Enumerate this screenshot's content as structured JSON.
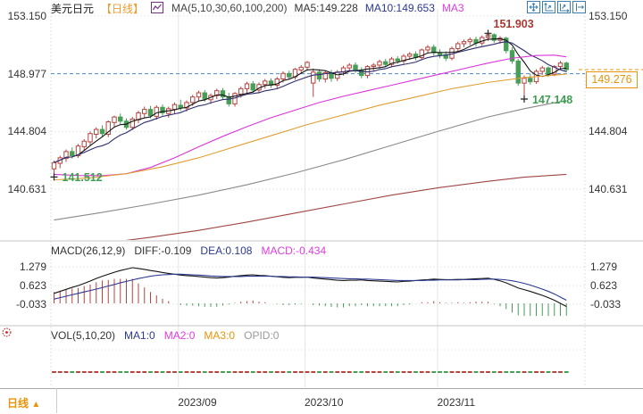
{
  "header": {
    "symbol": "美元日元",
    "period_tag": "【日线】",
    "ma_settings": "MA(5,10,30,60,100,200)",
    "ma5": "MA5:149.228",
    "ma10": "MA10:149.653",
    "ma30": "MA3",
    "toolbar_icons": [
      "move-icon",
      "y-axis-scale-icon",
      "x-axis-scale-icon",
      "pan-right-icon"
    ]
  },
  "colors": {
    "candle_up": "#b5443f",
    "candle_down": "#479e57",
    "ref_line_blue": "#4a86c8",
    "last_price_orange": "#e8940a",
    "grid": "#e6e6e6",
    "divider": "#c4c4c4",
    "annotation_high": "#a83832",
    "annotation_low": "#3f9e53",
    "toolbar_blue": "#3c7fae",
    "legend_icon_purple": "#7b2d8b",
    "indicator_icon_red": "#cc2222"
  },
  "chart_data": [
    {
      "type": "candlestick",
      "title": "美元日元 日线 (USD/JPY daily)",
      "y_axis_values": [
        153.15,
        148.977,
        144.804,
        140.631
      ],
      "y_axis_labels_left": [
        "153.150",
        "148.977",
        "144.804",
        "140.631"
      ],
      "y_axis_labels_right": [
        "153.150",
        "144.804",
        "140.631"
      ],
      "ylim": [
        140.631,
        153.15
      ],
      "x_axis": {
        "tick_labels": [
          "2023/09",
          "2023/10",
          "2023/11"
        ],
        "tick_indices": [
          21,
          42,
          64
        ]
      },
      "reference_line": {
        "price": 148.977,
        "color": "#4a86c8"
      },
      "last_price": {
        "value": "149.276",
        "price": 149.276,
        "color": "#e8940a"
      },
      "annotations": [
        {
          "text": "141.512",
          "price": 141.512,
          "index": 0,
          "color": "#3f9e53",
          "placement": "right"
        },
        {
          "text": "151.903",
          "price": 151.903,
          "index": 72,
          "color": "#a83832",
          "placement": "above"
        },
        {
          "text": "147.148",
          "price": 147.148,
          "index": 78,
          "color": "#3f9e53",
          "placement": "right"
        }
      ],
      "candles": [
        [
          142.1,
          142.7,
          141.512,
          142.55
        ],
        [
          142.5,
          143.05,
          142.15,
          142.9
        ],
        [
          142.85,
          143.5,
          142.6,
          143.35
        ],
        [
          143.35,
          143.65,
          142.85,
          143.05
        ],
        [
          143.05,
          143.9,
          142.9,
          143.75
        ],
        [
          143.7,
          144.25,
          143.4,
          144.1
        ],
        [
          144.05,
          144.8,
          143.8,
          144.65
        ],
        [
          144.6,
          145.1,
          144.3,
          144.95
        ],
        [
          144.95,
          145.25,
          144.45,
          144.65
        ],
        [
          144.6,
          145.6,
          144.4,
          145.5
        ],
        [
          145.45,
          145.95,
          145.1,
          145.85
        ],
        [
          145.85,
          146.1,
          145.35,
          145.55
        ],
        [
          145.55,
          145.75,
          144.95,
          145.1
        ],
        [
          145.1,
          145.85,
          144.9,
          145.7
        ],
        [
          145.65,
          146.3,
          145.4,
          146.15
        ],
        [
          146.1,
          146.6,
          145.8,
          146.4
        ],
        [
          146.4,
          146.65,
          145.75,
          145.95
        ],
        [
          145.9,
          146.7,
          145.65,
          146.55
        ],
        [
          146.55,
          146.75,
          145.95,
          146.15
        ],
        [
          146.1,
          146.6,
          145.8,
          146.45
        ],
        [
          146.4,
          146.9,
          146.1,
          146.75
        ],
        [
          146.7,
          147.1,
          146.3,
          146.5
        ],
        [
          146.5,
          147.05,
          146.25,
          146.9
        ],
        [
          146.9,
          147.45,
          146.65,
          147.3
        ],
        [
          147.3,
          147.75,
          147.0,
          147.6
        ],
        [
          147.6,
          147.8,
          146.95,
          147.15
        ],
        [
          147.1,
          147.55,
          146.8,
          147.4
        ],
        [
          147.4,
          147.9,
          147.15,
          147.75
        ],
        [
          147.75,
          147.95,
          147.1,
          147.3
        ],
        [
          147.3,
          147.6,
          146.6,
          146.8
        ],
        [
          146.8,
          147.65,
          146.6,
          147.55
        ],
        [
          147.5,
          148.05,
          147.25,
          147.9
        ],
        [
          147.9,
          148.4,
          147.6,
          148.25
        ],
        [
          148.25,
          148.45,
          147.6,
          147.8
        ],
        [
          147.8,
          148.35,
          147.55,
          148.2
        ],
        [
          148.2,
          148.6,
          147.9,
          148.45
        ],
        [
          148.45,
          148.65,
          147.95,
          148.15
        ],
        [
          148.15,
          148.75,
          147.9,
          148.6
        ],
        [
          148.6,
          149.15,
          148.35,
          149.0
        ],
        [
          149.0,
          149.2,
          148.55,
          148.75
        ],
        [
          148.75,
          149.4,
          148.55,
          149.3
        ],
        [
          149.25,
          149.6,
          149.0,
          149.45
        ],
        [
          149.45,
          149.9,
          149.2,
          149.8
        ],
        [
          148.3,
          149.35,
          147.3,
          149.1
        ],
        [
          149.1,
          149.3,
          148.4,
          148.6
        ],
        [
          148.6,
          149.2,
          148.35,
          149.05
        ],
        [
          149.05,
          149.25,
          148.4,
          148.65
        ],
        [
          148.65,
          149.25,
          148.45,
          149.1
        ],
        [
          149.1,
          149.55,
          148.85,
          149.4
        ],
        [
          149.4,
          149.75,
          149.15,
          149.6
        ],
        [
          149.6,
          149.8,
          149.05,
          149.25
        ],
        [
          149.25,
          149.45,
          148.65,
          148.85
        ],
        [
          148.85,
          149.6,
          148.65,
          149.5
        ],
        [
          149.5,
          149.75,
          149.2,
          149.6
        ],
        [
          149.6,
          150.0,
          149.35,
          149.85
        ],
        [
          149.85,
          150.05,
          149.45,
          149.65
        ],
        [
          149.65,
          150.2,
          149.45,
          150.05
        ],
        [
          150.05,
          150.25,
          149.7,
          149.9
        ],
        [
          149.9,
          150.4,
          149.7,
          150.25
        ],
        [
          150.25,
          150.55,
          150.0,
          150.4
        ],
        [
          150.4,
          150.6,
          149.95,
          150.15
        ],
        [
          150.15,
          150.8,
          149.95,
          150.7
        ],
        [
          150.7,
          151.05,
          150.45,
          150.9
        ],
        [
          150.9,
          151.1,
          150.3,
          150.5
        ],
        [
          150.5,
          150.75,
          150.1,
          150.35
        ],
        [
          150.35,
          150.6,
          149.9,
          150.1
        ],
        [
          150.1,
          150.95,
          149.95,
          150.8
        ],
        [
          150.8,
          151.3,
          150.55,
          151.15
        ],
        [
          151.15,
          151.45,
          150.9,
          151.3
        ],
        [
          151.3,
          151.6,
          151.05,
          151.45
        ],
        [
          151.45,
          151.65,
          150.95,
          151.2
        ],
        [
          151.2,
          151.75,
          151.0,
          151.6
        ],
        [
          151.6,
          151.903,
          151.35,
          151.8
        ],
        [
          151.8,
          151.9,
          151.2,
          151.4
        ],
        [
          151.4,
          151.7,
          151.15,
          151.55
        ],
        [
          151.55,
          151.65,
          150.45,
          150.65
        ],
        [
          150.65,
          150.9,
          149.7,
          149.9
        ],
        [
          149.9,
          150.05,
          148.1,
          148.3
        ],
        [
          148.3,
          148.85,
          147.148,
          148.65
        ],
        [
          148.65,
          149.0,
          148.2,
          148.4
        ],
        [
          148.4,
          149.3,
          148.25,
          149.15
        ],
        [
          149.15,
          149.55,
          148.9,
          149.4
        ],
        [
          149.4,
          149.5,
          148.75,
          148.95
        ],
        [
          148.95,
          149.6,
          148.8,
          149.5
        ],
        [
          149.5,
          149.9,
          149.3,
          149.75
        ],
        [
          149.75,
          149.85,
          149.1,
          149.276
        ]
      ],
      "ma_overlays": [
        {
          "name": "MA5",
          "color": "#141414",
          "period": 5
        },
        {
          "name": "MA10",
          "color": "#2e2e6e",
          "period": 10
        },
        {
          "name": "MA30",
          "color": "#d936d9",
          "points": [
            [
              0,
              141.7
            ],
            [
              4,
              141.62
            ],
            [
              8,
              141.6
            ],
            [
              12,
              141.75
            ],
            [
              16,
              142.2
            ],
            [
              20,
              142.9
            ],
            [
              24,
              143.7
            ],
            [
              28,
              144.45
            ],
            [
              32,
              145.15
            ],
            [
              36,
              145.8
            ],
            [
              40,
              146.35
            ],
            [
              44,
              146.9
            ],
            [
              48,
              147.35
            ],
            [
              52,
              147.75
            ],
            [
              56,
              148.15
            ],
            [
              60,
              148.55
            ],
            [
              64,
              148.95
            ],
            [
              68,
              149.35
            ],
            [
              72,
              149.75
            ],
            [
              76,
              150.1
            ],
            [
              80,
              150.3
            ],
            [
              83,
              150.32
            ],
            [
              85,
              150.2
            ]
          ]
        },
        {
          "name": "MA60",
          "color": "#df9f35",
          "points": [
            [
              0,
              141.3
            ],
            [
              6,
              141.45
            ],
            [
              12,
              141.75
            ],
            [
              18,
              142.25
            ],
            [
              24,
              142.9
            ],
            [
              30,
              143.7
            ],
            [
              36,
              144.5
            ],
            [
              42,
              145.3
            ],
            [
              48,
              146.0
            ],
            [
              54,
              146.7
            ],
            [
              60,
              147.3
            ],
            [
              66,
              147.9
            ],
            [
              72,
              148.35
            ],
            [
              78,
              148.7
            ],
            [
              85,
              148.95
            ]
          ]
        },
        {
          "name": "MA100",
          "color": "#8a8a8a",
          "points": [
            [
              0,
              138.4
            ],
            [
              8,
              138.95
            ],
            [
              16,
              139.55
            ],
            [
              24,
              140.2
            ],
            [
              32,
              140.95
            ],
            [
              40,
              141.8
            ],
            [
              48,
              142.75
            ],
            [
              56,
              143.8
            ],
            [
              64,
              144.85
            ],
            [
              72,
              145.85
            ],
            [
              78,
              146.45
            ],
            [
              85,
              147.05
            ]
          ]
        },
        {
          "name": "MA200",
          "color": "#a04545",
          "points": [
            [
              0,
              136.3
            ],
            [
              8,
              136.7
            ],
            [
              16,
              137.15
            ],
            [
              24,
              137.65
            ],
            [
              32,
              138.25
            ],
            [
              40,
              138.9
            ],
            [
              48,
              139.55
            ],
            [
              56,
              140.2
            ],
            [
              64,
              140.75
            ],
            [
              72,
              141.2
            ],
            [
              78,
              141.5
            ],
            [
              85,
              141.7
            ]
          ]
        }
      ]
    },
    {
      "type": "macd",
      "params_label": "MACD(26,12,9)",
      "diff_label": "DIFF:-0.109",
      "dea_label": "DEA:0.108",
      "macd_label": "MACD:-0.434",
      "y_axis_values": [
        1.279,
        0.623,
        -0.033
      ],
      "y_axis_labels": [
        "1.279",
        "0.623",
        "-0.033"
      ],
      "diff": [
        0.35,
        0.42,
        0.49,
        0.56,
        0.62,
        0.7,
        0.78,
        0.87,
        0.95,
        1.02,
        1.09,
        1.15,
        1.2,
        1.25,
        1.22,
        1.19,
        1.15,
        1.12,
        1.08,
        1.05,
        1.02,
        0.99,
        0.97,
        0.96,
        0.94,
        0.92,
        0.9,
        0.89,
        0.9,
        0.92,
        0.95,
        0.97,
        0.99,
        1.0,
        0.98,
        0.97,
        0.95,
        0.93,
        0.91,
        0.9,
        0.91,
        0.91,
        0.92,
        0.89,
        0.87,
        0.85,
        0.83,
        0.81,
        0.8,
        0.81,
        0.81,
        0.82,
        0.8,
        0.79,
        0.78,
        0.77,
        0.76,
        0.75,
        0.77,
        0.78,
        0.8,
        0.82,
        0.83,
        0.85,
        0.84,
        0.83,
        0.83,
        0.84,
        0.84,
        0.85,
        0.86,
        0.87,
        0.88,
        0.84,
        0.79,
        0.72,
        0.63,
        0.54,
        0.48,
        0.42,
        0.35,
        0.28,
        0.2,
        0.11,
        0.0,
        -0.109
      ],
      "dea": [
        0.15,
        0.2,
        0.25,
        0.3,
        0.35,
        0.4,
        0.45,
        0.5,
        0.55,
        0.61,
        0.66,
        0.72,
        0.77,
        0.82,
        0.87,
        0.91,
        0.95,
        0.98,
        1.0,
        1.01,
        1.02,
        1.02,
        1.01,
        1.0,
        0.99,
        0.98,
        0.96,
        0.95,
        0.94,
        0.94,
        0.94,
        0.94,
        0.95,
        0.95,
        0.95,
        0.95,
        0.95,
        0.94,
        0.94,
        0.93,
        0.93,
        0.92,
        0.92,
        0.92,
        0.91,
        0.9,
        0.89,
        0.88,
        0.87,
        0.86,
        0.86,
        0.85,
        0.85,
        0.84,
        0.83,
        0.82,
        0.81,
        0.8,
        0.8,
        0.8,
        0.8,
        0.8,
        0.81,
        0.81,
        0.82,
        0.82,
        0.82,
        0.82,
        0.83,
        0.83,
        0.83,
        0.84,
        0.85,
        0.85,
        0.84,
        0.82,
        0.79,
        0.75,
        0.7,
        0.64,
        0.57,
        0.5,
        0.42,
        0.33,
        0.22,
        0.108
      ],
      "hist_formula": "2*(diff-dea)"
    },
    {
      "type": "volume",
      "params_label": "VOL(5,10,20)",
      "ma1_label": "MA1:0",
      "ma2_label": "MA2:0",
      "ma3_label": "MA3:0",
      "opid_label": "OPID:0",
      "values_all_zero": true
    }
  ],
  "footer": {
    "period_label": "日线",
    "triangle": "▲",
    "dates": [
      "2023/09",
      "2023/10",
      "2023/11"
    ]
  }
}
